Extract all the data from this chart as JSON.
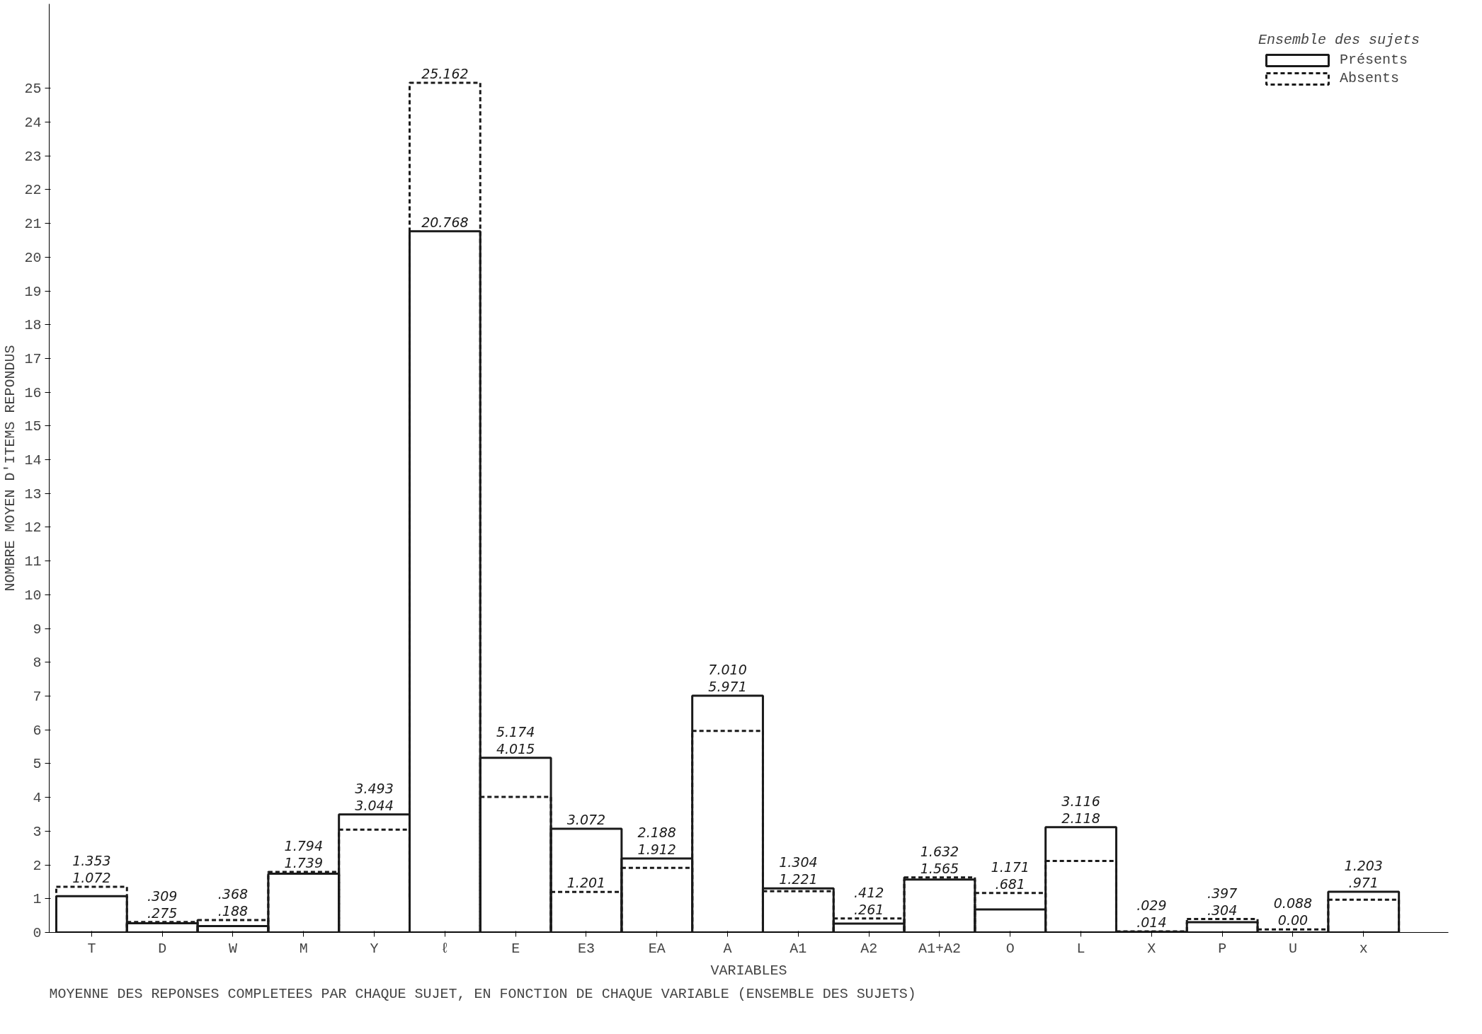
{
  "chart_data": {
    "type": "bar",
    "title": "MOYENNE DES REPONSES COMPLETEES PAR CHAQUE SUJET, EN FONCTION DE CHAQUE VARIABLE (ENSEMBLE DES SUJETS)",
    "xlabel": "VARIABLES",
    "ylabel": "NOMBRE MOYEN D'ITEMS REPONDUS",
    "legend_title": "Ensemble des sujets",
    "categories": [
      "T",
      "D",
      "W",
      "M",
      "Y",
      "ℓ",
      "E",
      "E3",
      "EA",
      "A",
      "A1",
      "A2",
      "A1+A2",
      "O",
      "L",
      "X",
      "P",
      "U",
      "x"
    ],
    "series": [
      {
        "name": "Présents",
        "color": "#1a1a1a",
        "line_style": "solid",
        "values": [
          1.072,
          0.275,
          0.188,
          1.739,
          3.493,
          20.768,
          5.174,
          3.072,
          2.188,
          7.01,
          1.304,
          0.261,
          1.565,
          0.681,
          3.116,
          0.014,
          0.304,
          0.0,
          1.203
        ],
        "value_labels": [
          "1.072",
          ".275",
          ".188",
          "1.739",
          "3.493",
          "20.768",
          "5.174",
          "3.072",
          "2.188",
          "7.010",
          "1.304",
          ".261",
          "1.565",
          ".681",
          "3.116",
          ".014",
          ".304",
          "0.00",
          "1.203"
        ]
      },
      {
        "name": "Absents",
        "color": "#1a1a1a",
        "line_style": "dashed",
        "values": [
          1.353,
          0.309,
          0.368,
          1.794,
          3.044,
          25.162,
          4.015,
          1.201,
          1.912,
          5.971,
          1.221,
          0.412,
          1.632,
          1.171,
          2.118,
          0.029,
          0.397,
          0.088,
          0.971
        ],
        "value_labels": [
          "1.353",
          ".309",
          ".368",
          "1.794",
          "3.044",
          "25.162",
          "4.015",
          "1.201",
          "1.912",
          "5.971",
          "1.221",
          ".412",
          "1.632",
          "1.171",
          "2.118",
          ".029",
          ".397",
          "0.088",
          ".971"
        ]
      }
    ],
    "ylim": [
      0,
      27.5
    ],
    "yticks": [
      0,
      1,
      2,
      3,
      4,
      5,
      6,
      7,
      8,
      9,
      10,
      11,
      12,
      13,
      14,
      15,
      16,
      17,
      18,
      19,
      20,
      21,
      22,
      23,
      24,
      25
    ],
    "grid": false,
    "legend": "top right"
  }
}
